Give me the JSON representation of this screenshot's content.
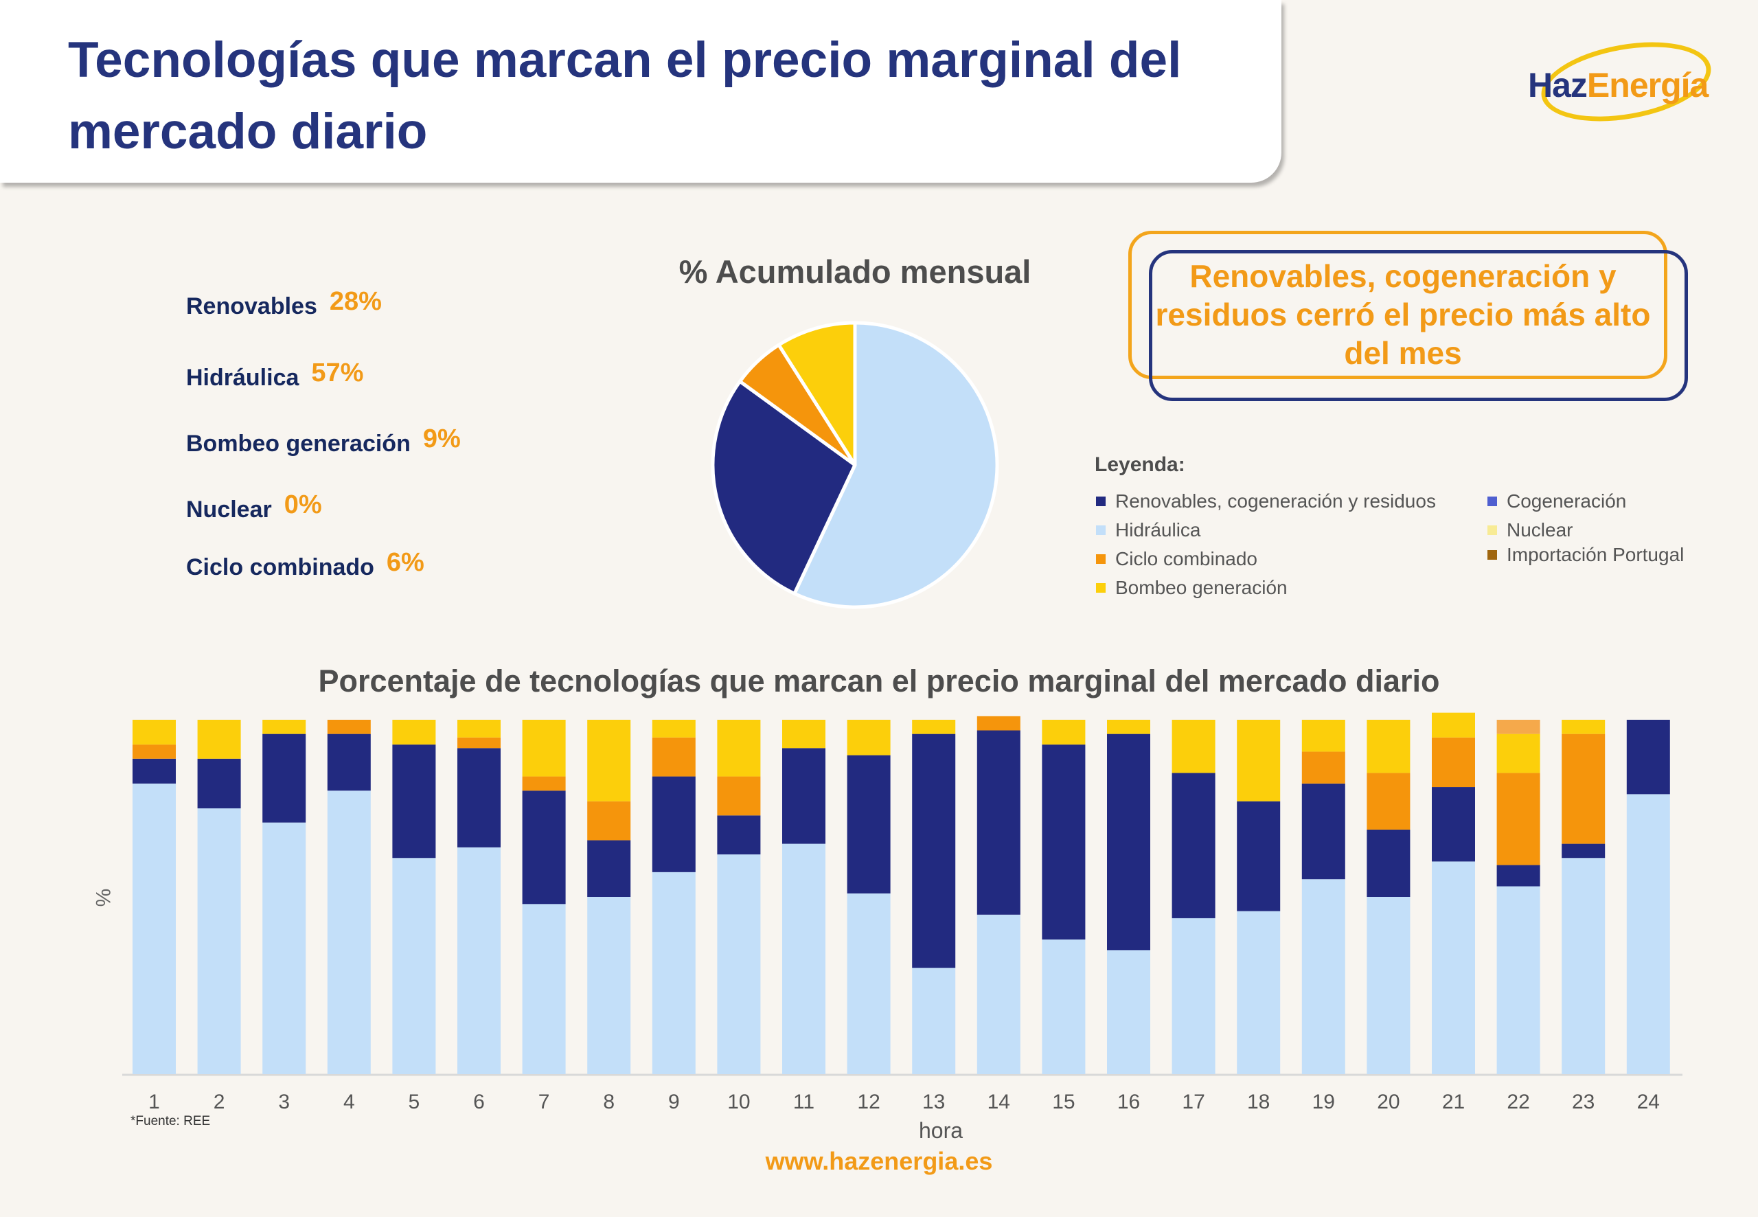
{
  "header": {
    "title": "Tecnologías que marcan el precio marginal del mercado diario"
  },
  "logo": {
    "part1": "Haz",
    "part2": "Energía"
  },
  "stats": [
    {
      "label": "Renovables",
      "value": "28%"
    },
    {
      "label": "Hidráulica",
      "value": "57%"
    },
    {
      "label": "Bombeo generación",
      "value": "9%"
    },
    {
      "label": "Nuclear",
      "value": "0%"
    },
    {
      "label": "Ciclo combinado",
      "value": "6%"
    }
  ],
  "highlight": {
    "text": "Renovables, cogeneración y residuos cerró el precio más alto del mes"
  },
  "legend": {
    "title": "Leyenda:",
    "items": [
      {
        "label": "Renovables, cogeneración y residuos",
        "color": "#222a80"
      },
      {
        "label": "Hidráulica",
        "color": "#c3dff9"
      },
      {
        "label": "Ciclo combinado",
        "color": "#f5950c"
      },
      {
        "label": "Bombeo generación",
        "color": "#fccf0b"
      },
      {
        "label": "Cogeneración",
        "color": "#4f5fd0"
      },
      {
        "label": "Nuclear",
        "color": "#f8eb95"
      },
      {
        "label": "Importación Portugal",
        "color": "#a0660f"
      }
    ]
  },
  "source": "*Fuente: REE",
  "footer": {
    "url": "www.hazenergia.es"
  },
  "chart_data": [
    {
      "type": "pie",
      "title": "% Acumulado mensual",
      "slices": [
        {
          "name": "Hidráulica",
          "value": 57,
          "color": "#c3dff9"
        },
        {
          "name": "Renovables, cogeneración y residuos",
          "value": 28,
          "color": "#222a80"
        },
        {
          "name": "Ciclo combinado",
          "value": 6,
          "color": "#f5950c"
        },
        {
          "name": "Bombeo generación",
          "value": 9,
          "color": "#fccf0b"
        },
        {
          "name": "Nuclear",
          "value": 0,
          "color": "#f8eb95"
        }
      ]
    },
    {
      "type": "bar",
      "stacked": true,
      "title": "Porcentaje de tecnologías que marcan el precio marginal del mercado diario",
      "xlabel": "hora",
      "ylabel": "%",
      "ylim": [
        0,
        100
      ],
      "categories": [
        "1",
        "2",
        "3",
        "4",
        "5",
        "6",
        "7",
        "8",
        "9",
        "10",
        "11",
        "12",
        "13",
        "14",
        "15",
        "16",
        "17",
        "18",
        "19",
        "20",
        "21",
        "22",
        "23",
        "24"
      ],
      "series": [
        {
          "name": "Hidráulica",
          "color": "#c3dff9",
          "values": [
            82,
            75,
            71,
            80,
            61,
            64,
            48,
            50,
            57,
            62,
            65,
            51,
            30,
            45,
            38,
            35,
            44,
            46,
            55,
            50,
            60,
            53,
            61,
            79
          ]
        },
        {
          "name": "Renovables, cogeneración y residuos",
          "color": "#222a80",
          "values": [
            7,
            14,
            25,
            16,
            32,
            28,
            32,
            16,
            27,
            11,
            27,
            39,
            66,
            52,
            55,
            61,
            41,
            31,
            27,
            19,
            21,
            6,
            4,
            21
          ]
        },
        {
          "name": "Ciclo combinado",
          "color": "#f5950c",
          "values": [
            4,
            0,
            0,
            4,
            0,
            3,
            4,
            11,
            11,
            11,
            0,
            0,
            0,
            4,
            0,
            0,
            0,
            0,
            9,
            16,
            14,
            26,
            31,
            0
          ]
        },
        {
          "name": "Bombeo generación",
          "color": "#fccf0b",
          "values": [
            7,
            11,
            4,
            0,
            7,
            5,
            16,
            23,
            5,
            16,
            8,
            10,
            4,
            0,
            7,
            4,
            15,
            23,
            9,
            15,
            7,
            11,
            4,
            0
          ]
        },
        {
          "name": "Nuclear",
          "color": "#f8eb95",
          "values": [
            0,
            0,
            0,
            0,
            0,
            0,
            0,
            0,
            0,
            0,
            0,
            0,
            0,
            0,
            0,
            0,
            0,
            0,
            0,
            0,
            0,
            0,
            0,
            0
          ]
        },
        {
          "name": "Importación Portugal",
          "color": "#f5a94b",
          "values": [
            0,
            0,
            0,
            0,
            0,
            0,
            0,
            0,
            0,
            0,
            0,
            0,
            0,
            0,
            0,
            0,
            0,
            0,
            0,
            0,
            0,
            4,
            0,
            0
          ]
        }
      ]
    }
  ]
}
